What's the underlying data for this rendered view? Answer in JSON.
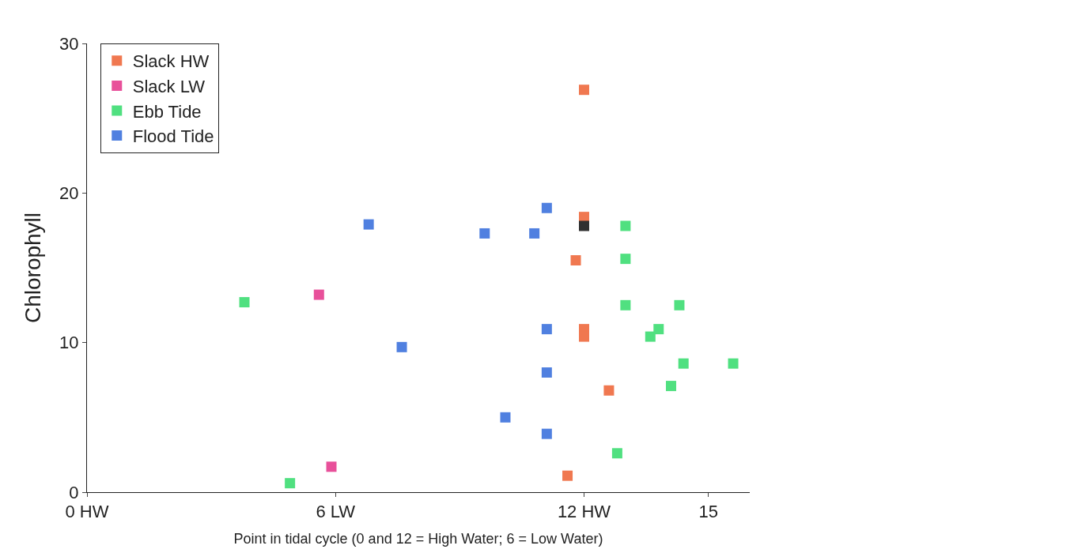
{
  "chart_data": {
    "type": "scatter",
    "xlabel": "Point in tidal cycle (0 and 12 = High Water; 6 = Low Water)",
    "ylabel": "Chlorophyll",
    "xlim": [
      0,
      16
    ],
    "ylim": [
      0,
      30
    ],
    "xticks": [
      {
        "value": 0,
        "label": "0 HW"
      },
      {
        "value": 6,
        "label": "6 LW"
      },
      {
        "value": 12,
        "label": "12 HW"
      },
      15
    ],
    "yticks": [
      0,
      10,
      20,
      30
    ],
    "marker": "square",
    "legend": "top left",
    "series": [
      {
        "name": "Slack HW",
        "color": "#f07850",
        "x": [
          12,
          12,
          11.8,
          12,
          12,
          12.6,
          11.6
        ],
        "values": [
          26.9,
          18.4,
          15.5,
          10.9,
          10.4,
          6.8,
          1.1
        ]
      },
      {
        "name": "Slack LW",
        "color": "#e8509a",
        "x": [
          5.6,
          5.9
        ],
        "values": [
          13.2,
          1.7
        ]
      },
      {
        "name": "Ebb Tide",
        "color": "#50e080",
        "x": [
          3.8,
          4.9,
          13,
          13,
          13,
          14.3,
          13.6,
          13.8,
          14.4,
          15.6,
          14.1,
          12.8
        ],
        "values": [
          12.7,
          0.6,
          17.8,
          15.6,
          12.5,
          12.5,
          10.4,
          10.9,
          8.6,
          8.6,
          7.1,
          2.6
        ]
      },
      {
        "name": "Flood Tide",
        "color": "#5080e0",
        "x": [
          6.8,
          9.6,
          10.8,
          11.1,
          11.1,
          7.6,
          11.1,
          10.1,
          11.1
        ],
        "values": [
          17.9,
          17.3,
          17.3,
          19.0,
          10.9,
          9.7,
          8.0,
          5.0,
          3.9
        ]
      },
      {
        "color": "#303030",
        "x": [
          12
        ],
        "values": [
          17.8
        ]
      }
    ]
  }
}
